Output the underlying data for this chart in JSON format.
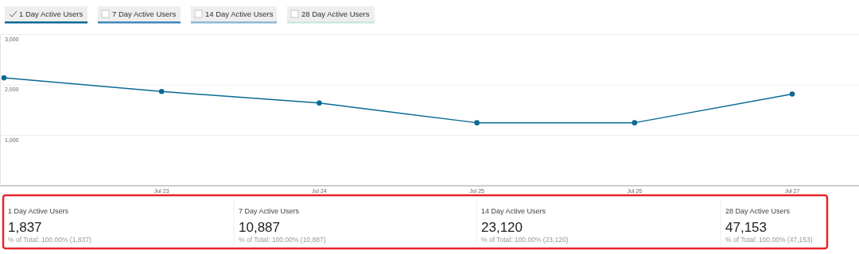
{
  "chart_data": [
    {
      "type": "line",
      "categories": [
        null,
        "Jul 23",
        "Jul 24",
        "Jul 25",
        "Jul 26",
        "Jul 27"
      ],
      "series": [
        {
          "name": "1 Day Active Users",
          "color": "#0b6a94",
          "values": [
            2140,
            1870,
            1640,
            1250,
            1250,
            1820
          ]
        }
      ],
      "ylim": [
        0,
        3000
      ],
      "yticks": [
        {
          "value": 1000,
          "label": "1,000"
        },
        {
          "value": 2000,
          "label": "2,000"
        },
        {
          "value": 3000,
          "label": "3,000"
        }
      ],
      "grid": "y",
      "marker": "circle",
      "legend": "top left",
      "annotations": [
        "7 Day Active Users",
        "14 Day Active Users",
        "28 Day Active Users"
      ]
    },
    {
      "type": "other",
      "annotations": [
        "1 Day Active Users",
        "1,837",
        "% of Total: 100.00% (1,837)",
        "7 Day Active Users",
        "10,887",
        "% of Total: 100.00% (10,887)",
        "14 Day Active Users",
        "23,120",
        "% of Total: 100.00% (23,120)",
        "28 Day Active Users",
        "47,153",
        "% of Total: 100.00% (47,153)"
      ]
    }
  ]
}
